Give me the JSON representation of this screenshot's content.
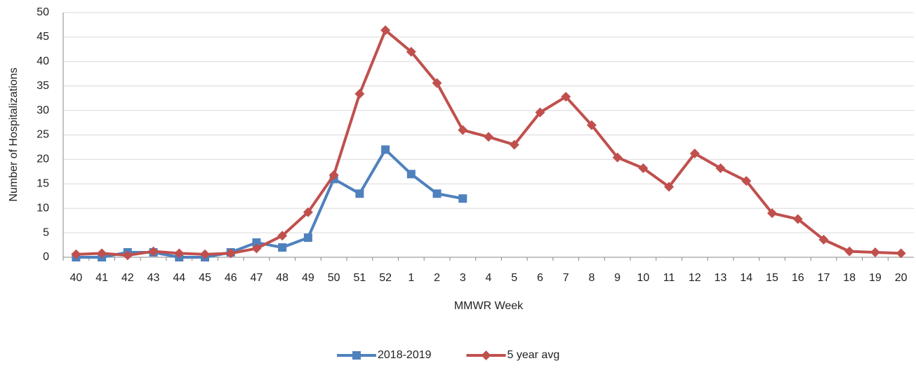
{
  "chart_data": {
    "type": "line",
    "x_label": "MMWR Week",
    "y_label": "Number of Hospitalizations",
    "categories": [
      "40",
      "41",
      "42",
      "43",
      "44",
      "45",
      "46",
      "47",
      "48",
      "49",
      "50",
      "51",
      "52",
      "1",
      "2",
      "3",
      "4",
      "5",
      "6",
      "7",
      "8",
      "9",
      "10",
      "11",
      "12",
      "13",
      "14",
      "15",
      "16",
      "17",
      "18",
      "19",
      "20"
    ],
    "series": [
      {
        "name": "2018-2019",
        "color": "#4f81bd",
        "marker": "square",
        "values": [
          0,
          0,
          1,
          1,
          0,
          0,
          1,
          3,
          2,
          4,
          16,
          13,
          22,
          17,
          13,
          12,
          null,
          null,
          null,
          null,
          null,
          null,
          null,
          null,
          null,
          null,
          null,
          null,
          null,
          null,
          null,
          null,
          null
        ]
      },
      {
        "name": "5 year avg",
        "color": "#c0504d",
        "marker": "diamond",
        "values": [
          0.6,
          0.8,
          0.4,
          1.2,
          0.8,
          0.6,
          0.8,
          1.8,
          4.4,
          9.2,
          16.8,
          33.4,
          46.4,
          42,
          35.6,
          26,
          24.6,
          23,
          29.6,
          32.8,
          27,
          20.4,
          18.2,
          14.4,
          21.2,
          18.2,
          15.6,
          9,
          7.8,
          3.6,
          1.2,
          1,
          0.8
        ]
      }
    ],
    "ylim": [
      0,
      50
    ],
    "yticks": [
      0,
      5,
      10,
      15,
      20,
      25,
      30,
      35,
      40,
      45,
      50
    ],
    "grid": true,
    "legend": "bottom"
  }
}
